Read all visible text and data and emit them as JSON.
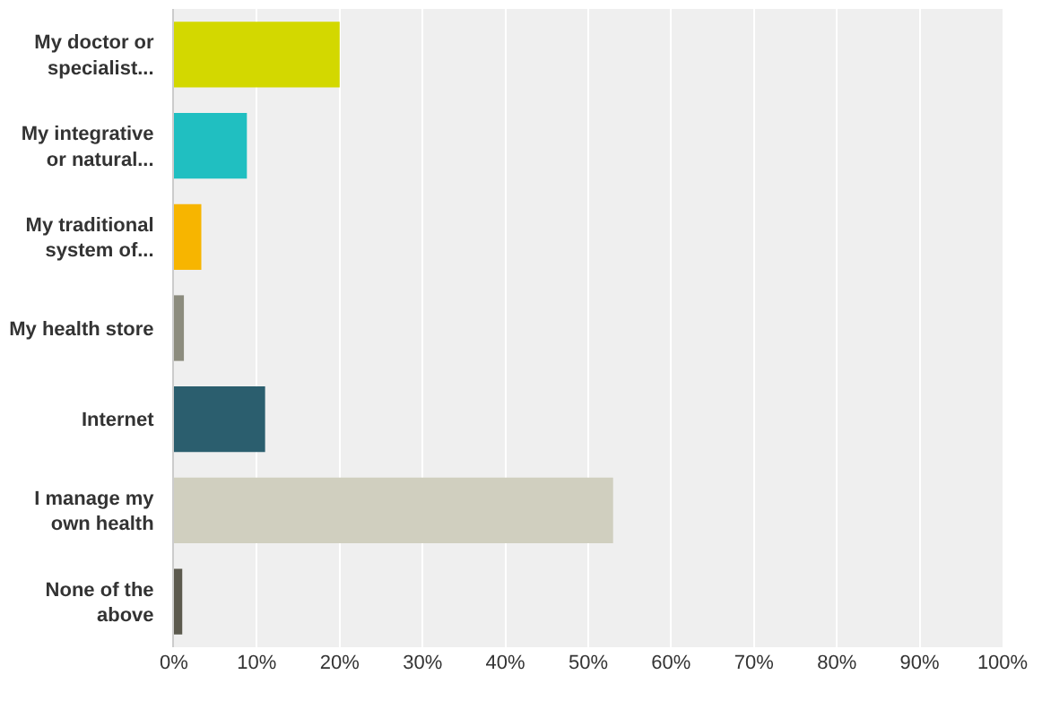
{
  "chart_data": {
    "type": "bar",
    "orientation": "horizontal",
    "categories": [
      "My doctor or\nspecialist...",
      "My integrative\nor natural...",
      "My traditional\nsystem of...",
      "My health store",
      "Internet",
      "I manage my\nown health",
      "None of the\nabove"
    ],
    "values": [
      20,
      8.8,
      3.3,
      1.2,
      11,
      53,
      1.0
    ],
    "colors": [
      "#d3d800",
      "#20bfc1",
      "#f7b500",
      "#8c8c7e",
      "#2b5e6e",
      "#d0cfbf",
      "#5c5a4e"
    ],
    "xlim": [
      0,
      100
    ],
    "xticks": [
      {
        "value": 0,
        "label": "0%"
      },
      {
        "value": 10,
        "label": "10%"
      },
      {
        "value": 20,
        "label": "20%"
      },
      {
        "value": 30,
        "label": "30%"
      },
      {
        "value": 40,
        "label": "40%"
      },
      {
        "value": 50,
        "label": "50%"
      },
      {
        "value": 60,
        "label": "60%"
      },
      {
        "value": 70,
        "label": "70%"
      },
      {
        "value": 80,
        "label": "80%"
      },
      {
        "value": 90,
        "label": "90%"
      },
      {
        "value": 100,
        "label": "100%"
      }
    ],
    "grid": "x"
  }
}
